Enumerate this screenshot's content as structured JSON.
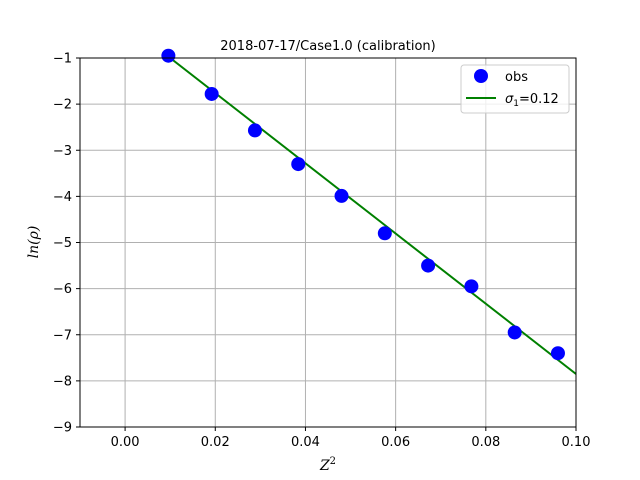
{
  "chart_data": {
    "type": "scatter",
    "title": "2018-07-17/Case1.0 (calibration)",
    "xlabel_base": "Z",
    "xlabel_sup": "2",
    "ylabel_pre": "ln(",
    "ylabel_rho": "ρ",
    "ylabel_post": ")",
    "xlim": [
      -0.01,
      0.1
    ],
    "ylim": [
      -9,
      -1
    ],
    "xticks": [
      0.0,
      0.02,
      0.04,
      0.06,
      0.08,
      0.1
    ],
    "xtick_labels": [
      "0.00",
      "0.02",
      "0.04",
      "0.06",
      "0.08",
      "0.10"
    ],
    "yticks": [
      -1,
      -2,
      -3,
      -4,
      -5,
      -6,
      -7,
      -8,
      -9
    ],
    "ytick_labels": [
      "−1",
      "−2",
      "−3",
      "−4",
      "−5",
      "−6",
      "−7",
      "−8",
      "−9"
    ],
    "grid": true,
    "legend_position": "top-right",
    "series": [
      {
        "name": "obs",
        "kind": "scatter",
        "color": "#0000ff",
        "x": [
          0.0096,
          0.0192,
          0.0288,
          0.0384,
          0.048,
          0.0576,
          0.0672,
          0.0768,
          0.0864,
          0.096
        ],
        "y": [
          -0.95,
          -1.78,
          -2.57,
          -3.3,
          -3.99,
          -4.8,
          -5.5,
          -5.95,
          -6.95,
          -7.4
        ]
      },
      {
        "name_sigma": "σ",
        "name_sub": "1",
        "name_rest": "=0.12",
        "kind": "line",
        "color": "#008000",
        "x": [
          0.01,
          0.1
        ],
        "y": [
          -1.0,
          -7.85
        ]
      }
    ]
  }
}
